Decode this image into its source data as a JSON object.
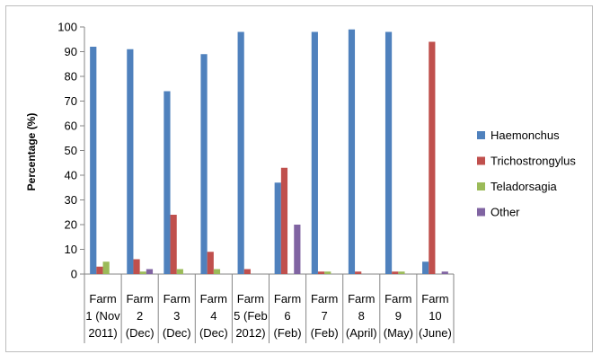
{
  "chart_data": {
    "type": "bar",
    "title": "",
    "xlabel": "",
    "ylabel": "Percentage (%)",
    "ylim": [
      0,
      100
    ],
    "yticks": [
      0,
      10,
      20,
      30,
      40,
      50,
      60,
      70,
      80,
      90,
      100
    ],
    "grid": false,
    "legend_position": "right",
    "categories": [
      [
        "Farm",
        "1 (Nov",
        "2011)"
      ],
      [
        "Farm",
        "2",
        "(Dec)"
      ],
      [
        "Farm",
        "3",
        "(Dec)"
      ],
      [
        "Farm",
        "4",
        "(Dec)"
      ],
      [
        "Farm",
        "5 (Feb",
        "2012)"
      ],
      [
        "Farm",
        "6",
        "(Feb)"
      ],
      [
        "Farm",
        "7",
        "(Feb)"
      ],
      [
        "Farm",
        "8",
        "(April)"
      ],
      [
        "Farm",
        "9",
        "(May)"
      ],
      [
        "Farm",
        "10",
        "(June)"
      ]
    ],
    "series": [
      {
        "name": "Haemonchus",
        "color": "#4f81bd",
        "values": [
          92,
          91,
          74,
          89,
          98,
          37,
          98,
          99,
          98,
          5
        ]
      },
      {
        "name": "Trichostrongylus",
        "color": "#c0504d",
        "values": [
          3,
          6,
          24,
          9,
          2,
          43,
          1,
          1,
          1,
          94
        ]
      },
      {
        "name": "Teladorsagia",
        "color": "#9bbb59",
        "values": [
          5,
          1,
          2,
          2,
          0,
          0,
          1,
          0,
          1,
          0
        ]
      },
      {
        "name": "Other",
        "color": "#8064a2",
        "values": [
          0,
          2,
          0,
          0,
          0,
          20,
          0,
          0,
          0,
          1
        ]
      }
    ]
  }
}
